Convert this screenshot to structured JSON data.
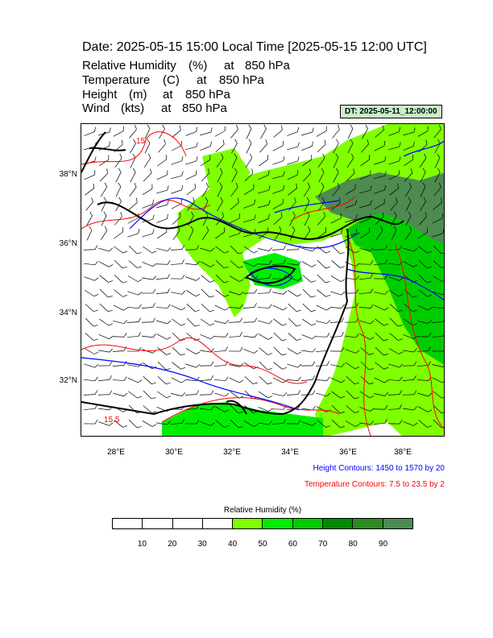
{
  "title": "Date: 2025-05-15  15:00 Local Time [2025-05-15  12:00 UTC]",
  "fields": [
    {
      "name": "Relative Humidity",
      "unit": "(%)",
      "at": "at",
      "level": "850 hPa"
    },
    {
      "name": "Temperature",
      "unit": "(C)",
      "at": "at",
      "level": "850 hPa"
    },
    {
      "name": "Height",
      "unit": "(m)",
      "at": "at",
      "level": "850 hPa"
    },
    {
      "name": "Wind",
      "unit": "(kts)",
      "at": "at",
      "level": "850 hPa"
    }
  ],
  "dt_badge": "DT: 2025-05-11_12:00:00",
  "map": {
    "lat_labels": [
      "38°N",
      "36°N",
      "34°N",
      "32°N"
    ],
    "lon_labels": [
      "28°E",
      "30°E",
      "32°E",
      "34°E",
      "36°E",
      "38°E"
    ],
    "extent": {
      "lon_min": 26.7,
      "lon_max": 39.4,
      "lat_min": 30.4,
      "lat_max": 39.5
    },
    "contour_labels": [
      "15",
      "15.5"
    ],
    "colors": {
      "height": "#0000ff",
      "temperature": "#ff0000",
      "coast": "#000000"
    }
  },
  "notes": {
    "height": "Height Contours: 1450 to 1570 by 20",
    "temperature": "Temperature Contours: 7.5 to 23.5 by 2"
  },
  "colorbar": {
    "title": "Relative Humidity  (%)",
    "ticks": [
      "10",
      "20",
      "30",
      "40",
      "50",
      "60",
      "70",
      "80",
      "90"
    ],
    "colors": [
      "#ffffff",
      "#ffffff",
      "#ffffff",
      "#ffffff",
      "#7fff00",
      "#00ee00",
      "#00cd00",
      "#008b00",
      "#2e8b22",
      "#4e8b50"
    ]
  }
}
